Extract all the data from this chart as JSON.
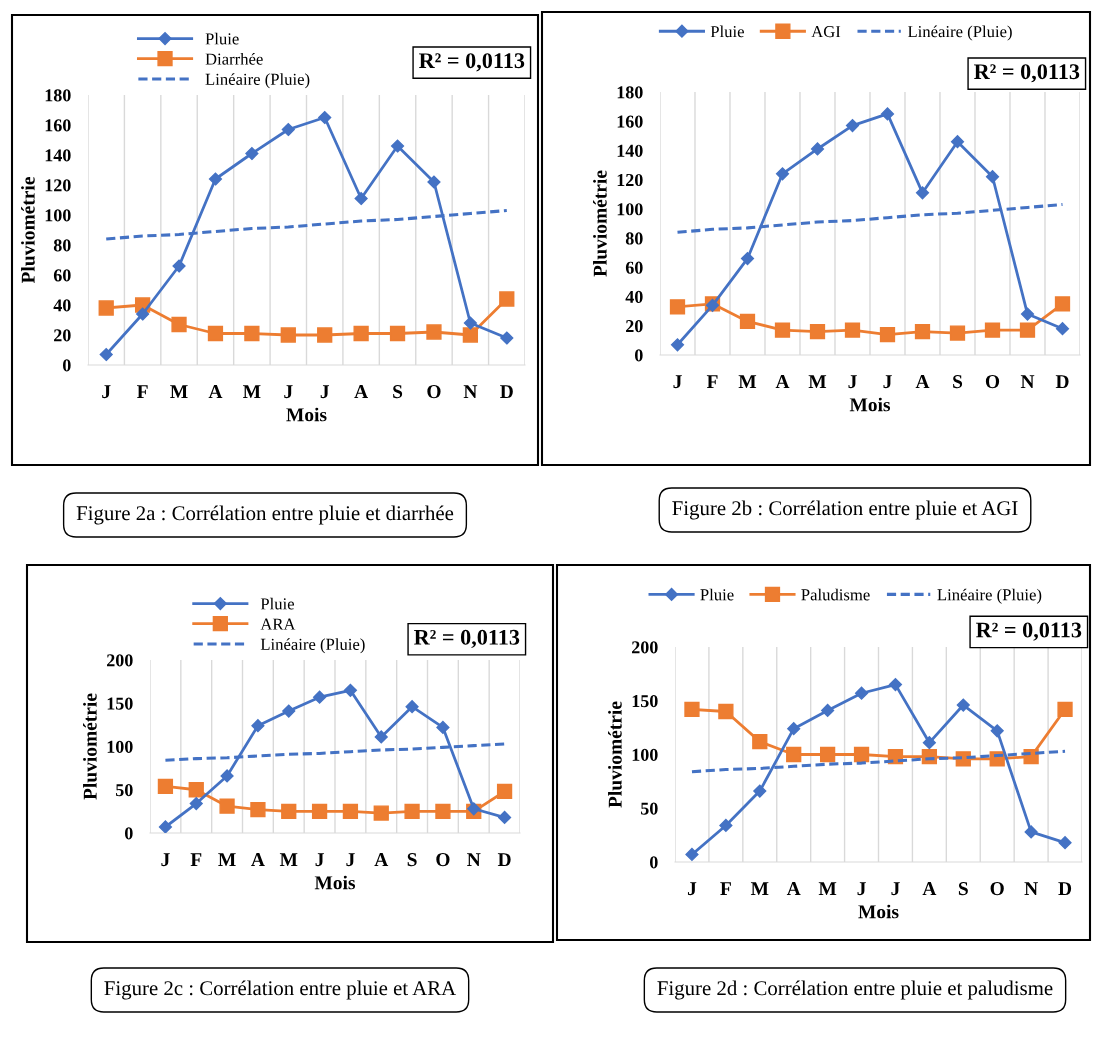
{
  "chart_data": [
    {
      "type": "line",
      "categories": [
        "J",
        "F",
        "M",
        "A",
        "M",
        "J",
        "J",
        "A",
        "S",
        "O",
        "N",
        "D"
      ],
      "xlabel": "Mois",
      "ylabel": "Pluviométrie",
      "ylim": [
        0,
        180
      ],
      "yticks": [
        0,
        20,
        40,
        60,
        80,
        100,
        120,
        140,
        160,
        180
      ],
      "grid": "x",
      "legend": "top left",
      "annotations": [
        "R² = 0,0113",
        "Figure 2a : Corrélation entre pluie et diarrhée"
      ],
      "series": [
        {
          "name": "Pluie",
          "color": "#4472c4",
          "marker": "diamond",
          "values": [
            7,
            34,
            66,
            124,
            141,
            157,
            165,
            111,
            146,
            122,
            28,
            18
          ]
        },
        {
          "name": "Diarrhée",
          "color": "#ed7d31",
          "marker": "square",
          "values": [
            38,
            40,
            27,
            21,
            21,
            20,
            20,
            21,
            21,
            22,
            20,
            44
          ]
        },
        {
          "name": "Linéaire (Pluie)",
          "color": "#4472c4",
          "marker": "none",
          "line_style": "dashed",
          "values": [
            84,
            86,
            87,
            89,
            91,
            92,
            94,
            96,
            97,
            99,
            101,
            103
          ]
        }
      ]
    },
    {
      "type": "line",
      "categories": [
        "J",
        "F",
        "M",
        "A",
        "M",
        "J",
        "J",
        "A",
        "S",
        "O",
        "N",
        "D"
      ],
      "xlabel": "Mois",
      "ylabel": "Pluviométrie",
      "ylim": [
        0,
        180
      ],
      "yticks": [
        0,
        20,
        40,
        60,
        80,
        100,
        120,
        140,
        160,
        180
      ],
      "grid": "x",
      "legend": "top",
      "annotations": [
        "R² = 0,0113",
        "Figure 2b : Corrélation entre pluie et AGI"
      ],
      "series": [
        {
          "name": "Pluie",
          "color": "#4472c4",
          "marker": "diamond",
          "values": [
            7,
            34,
            66,
            124,
            141,
            157,
            165,
            111,
            146,
            122,
            28,
            18
          ]
        },
        {
          "name": "AGI",
          "color": "#ed7d31",
          "marker": "square",
          "values": [
            33,
            35,
            23,
            17,
            16,
            17,
            14,
            16,
            15,
            17,
            17,
            35
          ]
        },
        {
          "name": "Linéaire (Pluie)",
          "color": "#4472c4",
          "marker": "none",
          "line_style": "dashed",
          "values": [
            84,
            86,
            87,
            89,
            91,
            92,
            94,
            96,
            97,
            99,
            101,
            103
          ]
        }
      ]
    },
    {
      "type": "line",
      "categories": [
        "J",
        "F",
        "M",
        "A",
        "M",
        "J",
        "J",
        "A",
        "S",
        "O",
        "N",
        "D"
      ],
      "xlabel": "Mois",
      "ylabel": "Pluviométrie",
      "ylim": [
        0,
        200
      ],
      "yticks": [
        0,
        50,
        100,
        150,
        200
      ],
      "grid": "x",
      "legend": "top left",
      "annotations": [
        "R² = 0,0113",
        "Figure 2c : Corrélation entre pluie et ARA"
      ],
      "series": [
        {
          "name": "Pluie",
          "color": "#4472c4",
          "marker": "diamond",
          "values": [
            7,
            34,
            66,
            124,
            141,
            157,
            165,
            111,
            146,
            122,
            28,
            18
          ]
        },
        {
          "name": "ARA",
          "color": "#ed7d31",
          "marker": "square",
          "values": [
            54,
            50,
            31,
            27,
            25,
            25,
            25,
            23,
            25,
            25,
            25,
            48
          ]
        },
        {
          "name": "Linéaire (Pluie)",
          "color": "#4472c4",
          "marker": "none",
          "line_style": "dashed",
          "values": [
            84,
            86,
            87,
            89,
            91,
            92,
            94,
            96,
            97,
            99,
            101,
            103
          ]
        }
      ]
    },
    {
      "type": "line",
      "categories": [
        "J",
        "F",
        "M",
        "A",
        "M",
        "J",
        "J",
        "A",
        "S",
        "O",
        "N",
        "D"
      ],
      "xlabel": "Mois",
      "ylabel": "Pluviométrie",
      "ylim": [
        0,
        200
      ],
      "yticks": [
        0,
        50,
        100,
        150,
        200
      ],
      "grid": "x",
      "legend": "top",
      "annotations": [
        "R² = 0,0113",
        "Figure 2d : Corrélation entre pluie et paludisme"
      ],
      "series": [
        {
          "name": "Pluie",
          "color": "#4472c4",
          "marker": "diamond",
          "values": [
            7,
            34,
            66,
            124,
            141,
            157,
            165,
            111,
            146,
            122,
            28,
            18
          ]
        },
        {
          "name": "Paludisme",
          "color": "#ed7d31",
          "marker": "square",
          "values": [
            142,
            140,
            112,
            100,
            100,
            100,
            98,
            98,
            96,
            96,
            98,
            142
          ]
        },
        {
          "name": "Linéaire (Pluie)",
          "color": "#4472c4",
          "marker": "none",
          "line_style": "dashed",
          "values": [
            84,
            86,
            87,
            89,
            91,
            92,
            94,
            96,
            97,
            99,
            101,
            103
          ]
        }
      ]
    }
  ]
}
